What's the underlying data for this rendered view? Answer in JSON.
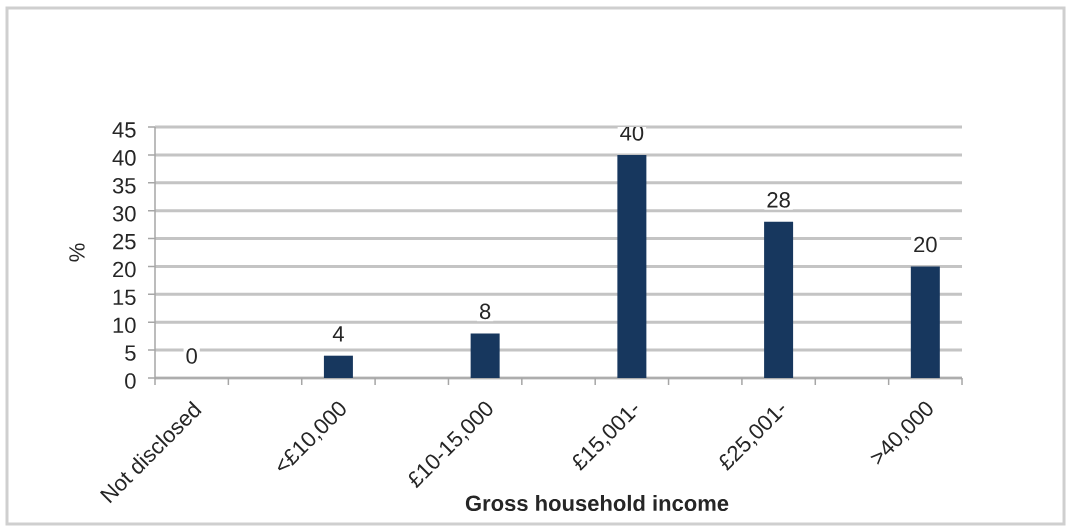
{
  "chart_data": {
    "type": "bar",
    "xlabel": "Gross household income",
    "ylabel": "%",
    "categories": [
      "Not disclosed",
      null,
      "<£10,000",
      null,
      "£10-15,000",
      null,
      "£15,001-",
      null,
      "£25,001-",
      null,
      ">40,000"
    ],
    "values": [
      0,
      null,
      4,
      null,
      8,
      null,
      40,
      null,
      28,
      null,
      20
    ],
    "color": "#17375e",
    "ylim": [
      0,
      45
    ],
    "yticks": [
      0,
      5,
      10,
      15,
      20,
      25,
      30,
      35,
      40,
      45
    ],
    "grid": "y",
    "data_labels": true
  }
}
